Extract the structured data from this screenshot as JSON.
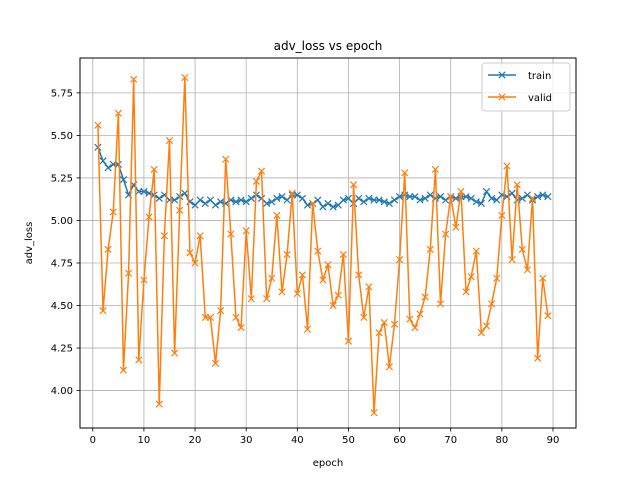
{
  "chart_data": {
    "type": "line",
    "title": "adv_loss vs epoch",
    "xlabel": "epoch",
    "ylabel": "adv_loss",
    "xlim": [
      -2.5,
      94.5
    ],
    "ylim": [
      3.78,
      5.955
    ],
    "xticks": [
      0,
      10,
      20,
      30,
      40,
      50,
      60,
      70,
      80,
      90
    ],
    "xtick_labels": [
      "0",
      "10",
      "20",
      "30",
      "40",
      "50",
      "60",
      "70",
      "80",
      "90"
    ],
    "yticks": [
      4.0,
      4.25,
      4.5,
      4.75,
      5.0,
      5.25,
      5.5,
      5.75
    ],
    "ytick_labels": [
      "4.00",
      "4.25",
      "4.50",
      "4.75",
      "5.00",
      "5.25",
      "5.50",
      "5.75"
    ],
    "grid": true,
    "legend_position": "top-right",
    "marker": "x",
    "x": [
      1,
      2,
      3,
      4,
      5,
      6,
      7,
      8,
      9,
      10,
      11,
      12,
      13,
      14,
      15,
      16,
      17,
      18,
      19,
      20,
      21,
      22,
      23,
      24,
      25,
      26,
      27,
      28,
      29,
      30,
      31,
      32,
      33,
      34,
      35,
      36,
      37,
      38,
      39,
      40,
      41,
      42,
      43,
      44,
      45,
      46,
      47,
      48,
      49,
      50,
      51,
      52,
      53,
      54,
      55,
      56,
      57,
      58,
      59,
      60,
      61,
      62,
      63,
      64,
      65,
      66,
      67,
      68,
      69,
      70,
      71,
      72,
      73,
      74,
      75,
      76,
      77,
      78,
      79,
      80,
      81,
      82,
      83,
      84,
      85,
      86,
      87,
      88,
      89
    ],
    "series": [
      {
        "name": "train",
        "color": "#1f77b4",
        "values": [
          5.43,
          5.35,
          5.31,
          5.33,
          5.33,
          5.24,
          5.15,
          5.21,
          5.17,
          5.17,
          5.16,
          5.15,
          5.13,
          5.15,
          5.12,
          5.12,
          5.14,
          5.16,
          5.11,
          5.09,
          5.12,
          5.1,
          5.12,
          5.09,
          5.11,
          5.1,
          5.12,
          5.11,
          5.12,
          5.11,
          5.13,
          5.15,
          5.13,
          5.1,
          5.11,
          5.13,
          5.14,
          5.12,
          5.15,
          5.15,
          5.13,
          5.09,
          5.1,
          5.12,
          5.08,
          5.1,
          5.08,
          5.09,
          5.12,
          5.13,
          5.1,
          5.13,
          5.11,
          5.13,
          5.12,
          5.12,
          5.11,
          5.1,
          5.12,
          5.14,
          5.15,
          5.14,
          5.14,
          5.12,
          5.13,
          5.15,
          5.13,
          5.14,
          5.12,
          5.14,
          5.13,
          5.14,
          5.14,
          5.13,
          5.11,
          5.1,
          5.17,
          5.13,
          5.12,
          5.15,
          5.14,
          5.16,
          5.12,
          5.13,
          5.15,
          5.12,
          5.14,
          5.15,
          5.14
        ]
      },
      {
        "name": "valid",
        "color": "#ff7f0e",
        "values": [
          5.56,
          4.47,
          4.83,
          5.05,
          5.63,
          4.12,
          4.69,
          5.83,
          4.18,
          4.65,
          5.02,
          5.3,
          3.92,
          4.91,
          5.47,
          4.22,
          5.06,
          5.84,
          4.81,
          4.75,
          4.91,
          4.43,
          4.43,
          4.16,
          4.47,
          5.36,
          4.92,
          4.43,
          4.37,
          4.94,
          4.54,
          5.23,
          5.29,
          4.54,
          4.66,
          5.03,
          4.58,
          4.8,
          5.16,
          4.57,
          4.68,
          4.36,
          5.1,
          4.82,
          4.65,
          4.74,
          4.5,
          4.56,
          4.8,
          4.29,
          5.21,
          4.68,
          4.43,
          4.61,
          3.87,
          4.34,
          4.4,
          4.14,
          4.39,
          4.77,
          5.28,
          4.42,
          4.37,
          4.45,
          4.55,
          4.83,
          5.3,
          4.51,
          4.92,
          5.14,
          4.96,
          5.17,
          4.58,
          4.67,
          4.82,
          4.34,
          4.38,
          4.51,
          4.66,
          5.03,
          5.32,
          4.77,
          5.21,
          4.83,
          4.71,
          5.13,
          4.19,
          4.66,
          4.44
        ]
      }
    ]
  }
}
